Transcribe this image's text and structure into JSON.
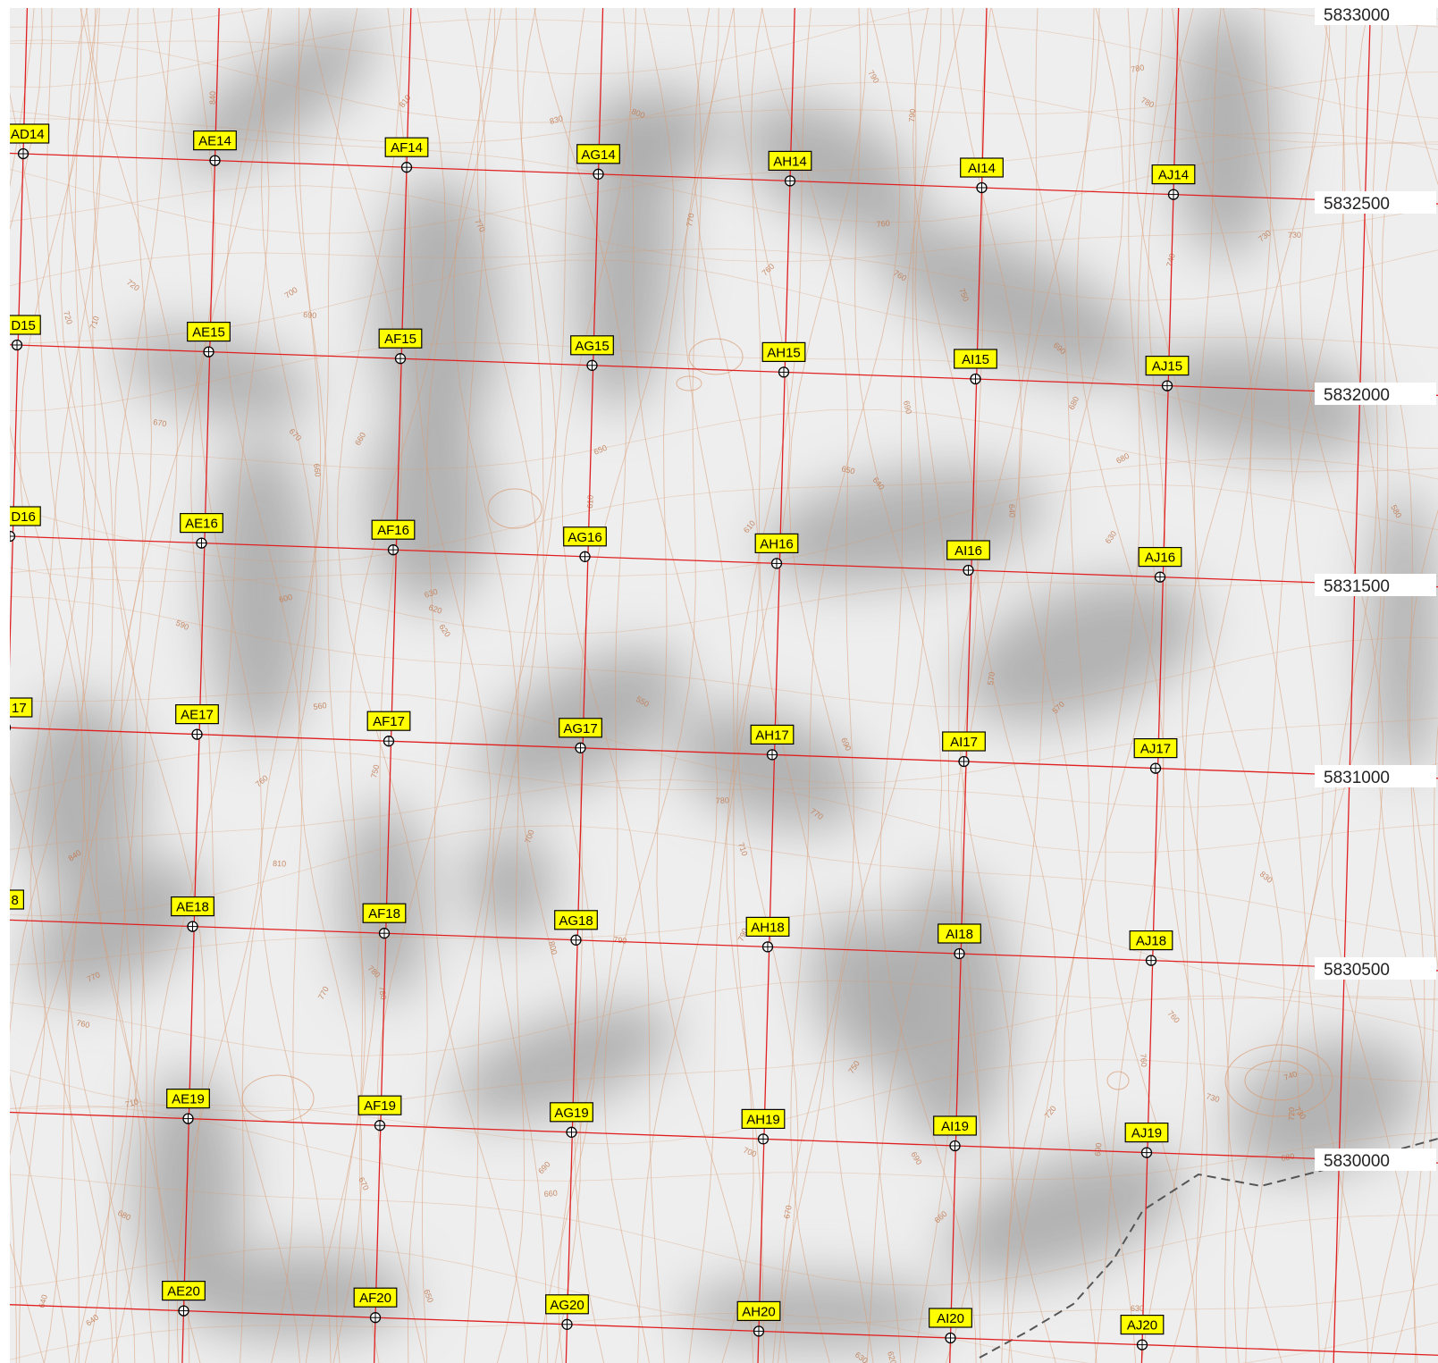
{
  "map": {
    "colors": {
      "background": "#eeeeee",
      "hillshade": "#a8a8a8",
      "contour": "#d89a72",
      "grid_line": "#e02020",
      "label_fill": "#ffff00",
      "label_border": "#000000",
      "boundary": "#555555"
    },
    "icons": {
      "grid_point": "crosshair-circle-icon",
      "boundary": "dashed-boundary-line"
    },
    "northing_labels": [
      "5833000",
      "5832500",
      "5832000",
      "5831500",
      "5831000",
      "5830500",
      "5830000"
    ],
    "rows": [
      [
        "AD14",
        "AE14",
        "AF14",
        "AG14",
        "AH14",
        "AI14",
        "AJ14"
      ],
      [
        "D15",
        "AE15",
        "AF15",
        "AG15",
        "AH15",
        "AI15",
        "AJ15"
      ],
      [
        "D16",
        "AE16",
        "AF16",
        "AG16",
        "AH16",
        "AI16",
        "AJ16"
      ],
      [
        "17",
        "AE17",
        "AF17",
        "AG17",
        "AH17",
        "AI17",
        "AJ17"
      ],
      [
        "8",
        "AE18",
        "AF18",
        "AG18",
        "AH18",
        "AI18",
        "AJ18"
      ],
      [
        "",
        "AE19",
        "AF19",
        "AG19",
        "AH19",
        "AI19",
        "AJ19"
      ],
      [
        "",
        "AE20",
        "AF20",
        "AG20",
        "AH20",
        "AI20",
        "AJ20"
      ]
    ],
    "contour_labels": [
      "840",
      "810",
      "830",
      "800",
      "790",
      "790",
      "790",
      "780",
      "780",
      "770",
      "770",
      "760",
      "760",
      "760",
      "750",
      "740",
      "730",
      "730",
      "720",
      "720",
      "710",
      "700",
      "690",
      "690",
      "690",
      "680",
      "680",
      "670",
      "670",
      "660",
      "660",
      "650",
      "650",
      "640",
      "640",
      "630",
      "630",
      "620",
      "620",
      "610",
      "610",
      "600",
      "590",
      "580",
      "570",
      "570",
      "560",
      "550",
      "690",
      "750",
      "760",
      "780",
      "770",
      "710",
      "700"
    ]
  }
}
